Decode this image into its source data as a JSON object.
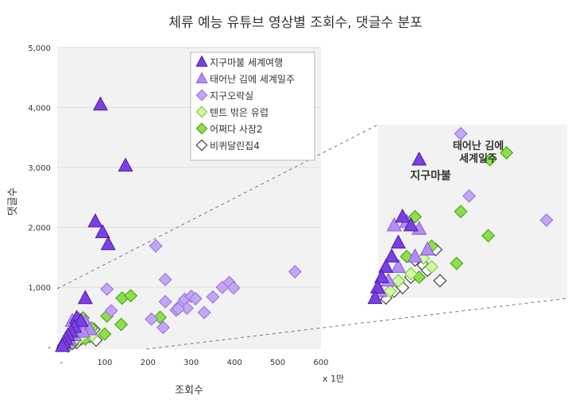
{
  "chart_data": {
    "type": "scatter",
    "title": "체류 예능 유튜브 영상별 조회수, 댓글수 분포",
    "xlabel": "조회수",
    "ylabel": "댓글수",
    "x_unit": "x 1만",
    "xlim": [
      -10,
      600
    ],
    "ylim": [
      -30,
      5000
    ],
    "x_ticks": [
      0,
      100,
      200,
      300,
      400,
      500,
      600
    ],
    "x_tick_labels": [
      "-",
      "100",
      "200",
      "300",
      "400",
      "500",
      "600"
    ],
    "y_ticks": [
      0,
      1000,
      2000,
      3000,
      4000,
      5000
    ],
    "y_tick_labels": [
      "-",
      "1,000",
      "2,000",
      "3,000",
      "4,000",
      "5,000"
    ],
    "legend_position": "top-right",
    "series": [
      {
        "name": "지구마불 세계여행",
        "marker": "triangle",
        "color": "#7b3fe4",
        "fill": "#7b3fe4",
        "stroke": "#4b1fa0",
        "points": [
          [
            90,
            4050
          ],
          [
            148,
            3030
          ],
          [
            78,
            2100
          ],
          [
            95,
            1920
          ],
          [
            108,
            1720
          ],
          [
            55,
            820
          ],
          [
            35,
            490
          ],
          [
            45,
            440
          ],
          [
            30,
            340
          ],
          [
            22,
            260
          ],
          [
            15,
            200
          ],
          [
            10,
            140
          ],
          [
            5,
            80
          ],
          [
            2,
            20
          ]
        ]
      },
      {
        "name": "태어난 김에 세계일주",
        "marker": "triangle",
        "color": "#b48cf5",
        "fill": "#b48cf5",
        "stroke": "#8a5ad8",
        "points": [
          [
            25,
            440
          ],
          [
            40,
            460
          ],
          [
            55,
            420
          ],
          [
            65,
            300
          ],
          [
            50,
            260
          ],
          [
            30,
            200
          ],
          [
            18,
            120
          ],
          [
            8,
            60
          ]
        ]
      },
      {
        "name": "지구오락실",
        "marker": "diamond",
        "color": "#c4a6f6",
        "fill": "#c4a6f6",
        "stroke": "#9c7ae0",
        "points": [
          [
            218,
            1690
          ],
          [
            240,
            1130
          ],
          [
            105,
            970
          ],
          [
            115,
            610
          ],
          [
            240,
            760
          ],
          [
            265,
            620
          ],
          [
            275,
            700
          ],
          [
            285,
            800
          ],
          [
            300,
            850
          ],
          [
            310,
            810
          ],
          [
            330,
            580
          ],
          [
            350,
            840
          ],
          [
            372,
            1000
          ],
          [
            388,
            1080
          ],
          [
            398,
            990
          ],
          [
            540,
            1260
          ],
          [
            235,
            330
          ],
          [
            208,
            470
          ],
          [
            290,
            650
          ],
          [
            270,
            640
          ]
        ]
      },
      {
        "name": "텐트 밖은 유럽",
        "marker": "diamond",
        "color": "#d4f7a8",
        "fill": "#d4f7a8",
        "stroke": "#7ccf3a",
        "points": [
          [
            60,
            250
          ],
          [
            45,
            160
          ],
          [
            30,
            120
          ],
          [
            70,
            200
          ],
          [
            20,
            60
          ]
        ]
      },
      {
        "name": "어쩌다 사장2",
        "marker": "diamond",
        "color": "#8ce04c",
        "fill": "#8ce04c",
        "stroke": "#4ea81c",
        "points": [
          [
            140,
            820
          ],
          [
            160,
            860
          ],
          [
            138,
            380
          ],
          [
            105,
            520
          ],
          [
            228,
            500
          ],
          [
            100,
            220
          ],
          [
            50,
            490
          ],
          [
            40,
            260
          ],
          [
            55,
            140
          ],
          [
            30,
            120
          ],
          [
            70,
            320
          ]
        ]
      },
      {
        "name": "비퀴달린집4",
        "marker": "diamond",
        "color": "#ffffff",
        "fill": "#ffffff",
        "stroke": "#444444",
        "points": [
          [
            75,
            300
          ],
          [
            80,
            120
          ],
          [
            60,
            210
          ],
          [
            45,
            140
          ],
          [
            35,
            80
          ],
          [
            25,
            60
          ],
          [
            15,
            20
          ],
          [
            5,
            30
          ],
          [
            50,
            240
          ],
          [
            65,
            180
          ]
        ]
      }
    ],
    "annotations": [
      {
        "text": "지구마불",
        "series": "지구마불 세계여행"
      },
      {
        "text": "태어난 김에",
        "series": "태어난 김에 세계일주"
      },
      {
        "text": "세계일주",
        "series": "태어난 김에 세계일주"
      }
    ]
  }
}
